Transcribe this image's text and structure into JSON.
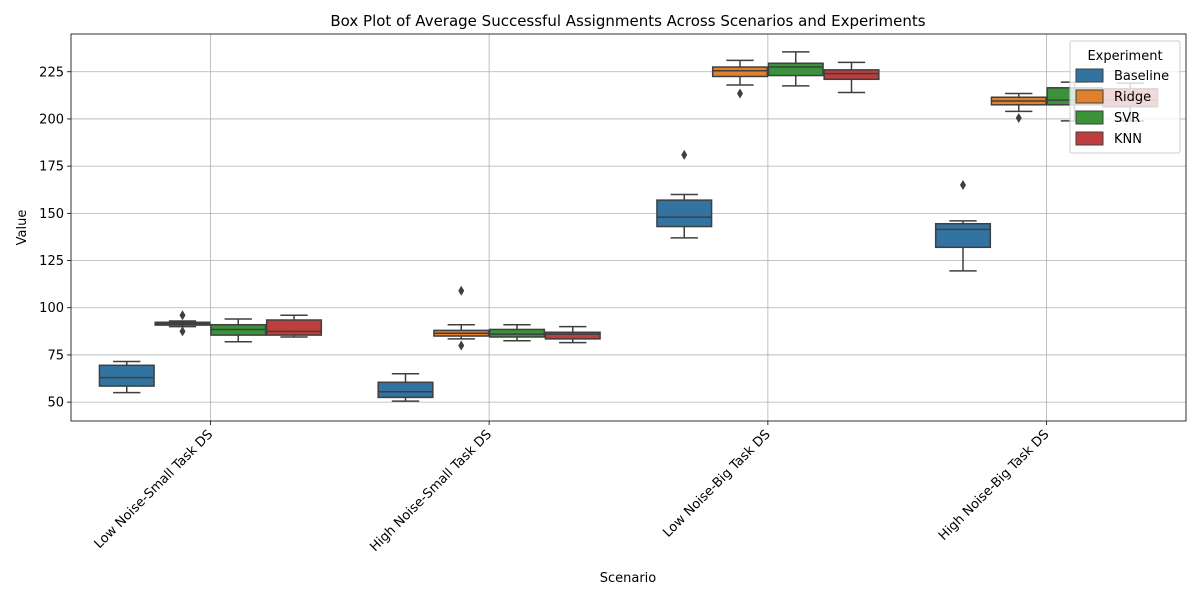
{
  "chart_data": {
    "type": "box",
    "title": "Box Plot of Average Successful Assignments Across Scenarios and Experiments",
    "xlabel": "Scenario",
    "ylabel": "Value",
    "ylim": [
      40,
      245
    ],
    "yticks": [
      50,
      75,
      100,
      125,
      150,
      175,
      200,
      225
    ],
    "grid": true,
    "legend": {
      "title": "Experiment",
      "placement": "top-right"
    },
    "categories": [
      "Low Noise-Small Task DS",
      "High Noise-Small Task DS",
      "Low Noise-Big Task DS",
      "High Noise-Big Task DS"
    ],
    "series": [
      {
        "name": "Baseline",
        "color": "#3274a1",
        "boxes": [
          {
            "whislo": 55,
            "q1": 58.5,
            "med": 63,
            "q3": 69.5,
            "whishi": 71.5,
            "fliers": []
          },
          {
            "whislo": 50.5,
            "q1": 52.5,
            "med": 55.5,
            "q3": 60.5,
            "whishi": 65,
            "fliers": []
          },
          {
            "whislo": 137,
            "q1": 143,
            "med": 148,
            "q3": 157,
            "whishi": 160,
            "fliers": [
              181
            ]
          },
          {
            "whislo": 119.5,
            "q1": 132,
            "med": 141.5,
            "q3": 144.5,
            "whishi": 146,
            "fliers": [
              165
            ]
          }
        ]
      },
      {
        "name": "Ridge",
        "color": "#e1812c",
        "boxes": [
          {
            "whislo": 90,
            "q1": 90.8,
            "med": 91.5,
            "q3": 92.3,
            "whishi": 93,
            "fliers": [
              96,
              87.5
            ]
          },
          {
            "whislo": 83.5,
            "q1": 85,
            "med": 86.5,
            "q3": 88,
            "whishi": 91,
            "fliers": [
              109,
              80
            ]
          },
          {
            "whislo": 218,
            "q1": 222.5,
            "med": 225.5,
            "q3": 227.5,
            "whishi": 231,
            "fliers": [
              213.5
            ]
          },
          {
            "whislo": 204,
            "q1": 207.5,
            "med": 209.5,
            "q3": 211.5,
            "whishi": 213.5,
            "fliers": [
              200.5
            ]
          }
        ]
      },
      {
        "name": "SVR",
        "color": "#3a923a",
        "boxes": [
          {
            "whislo": 82,
            "q1": 85.5,
            "med": 88.5,
            "q3": 91,
            "whishi": 94,
            "fliers": []
          },
          {
            "whislo": 82.5,
            "q1": 84.5,
            "med": 86,
            "q3": 88.5,
            "whishi": 91,
            "fliers": []
          },
          {
            "whislo": 217.5,
            "q1": 223,
            "med": 227.5,
            "q3": 229.5,
            "whishi": 235.5,
            "fliers": []
          },
          {
            "whislo": 199,
            "q1": 207.5,
            "med": 210,
            "q3": 216.5,
            "whishi": 219.5,
            "fliers": []
          }
        ]
      },
      {
        "name": "KNN",
        "color": "#c03d3e",
        "boxes": [
          {
            "whislo": 84.5,
            "q1": 85.5,
            "med": 87.5,
            "q3": 93.5,
            "whishi": 96,
            "fliers": []
          },
          {
            "whislo": 81.5,
            "q1": 83.5,
            "med": 86,
            "q3": 87,
            "whishi": 90,
            "fliers": []
          },
          {
            "whislo": 214,
            "q1": 221,
            "med": 224,
            "q3": 226,
            "whishi": 230,
            "fliers": []
          },
          {
            "whislo": 199,
            "q1": 206.5,
            "med": 210,
            "q3": 216,
            "whishi": 219,
            "fliers": []
          }
        ]
      }
    ]
  }
}
